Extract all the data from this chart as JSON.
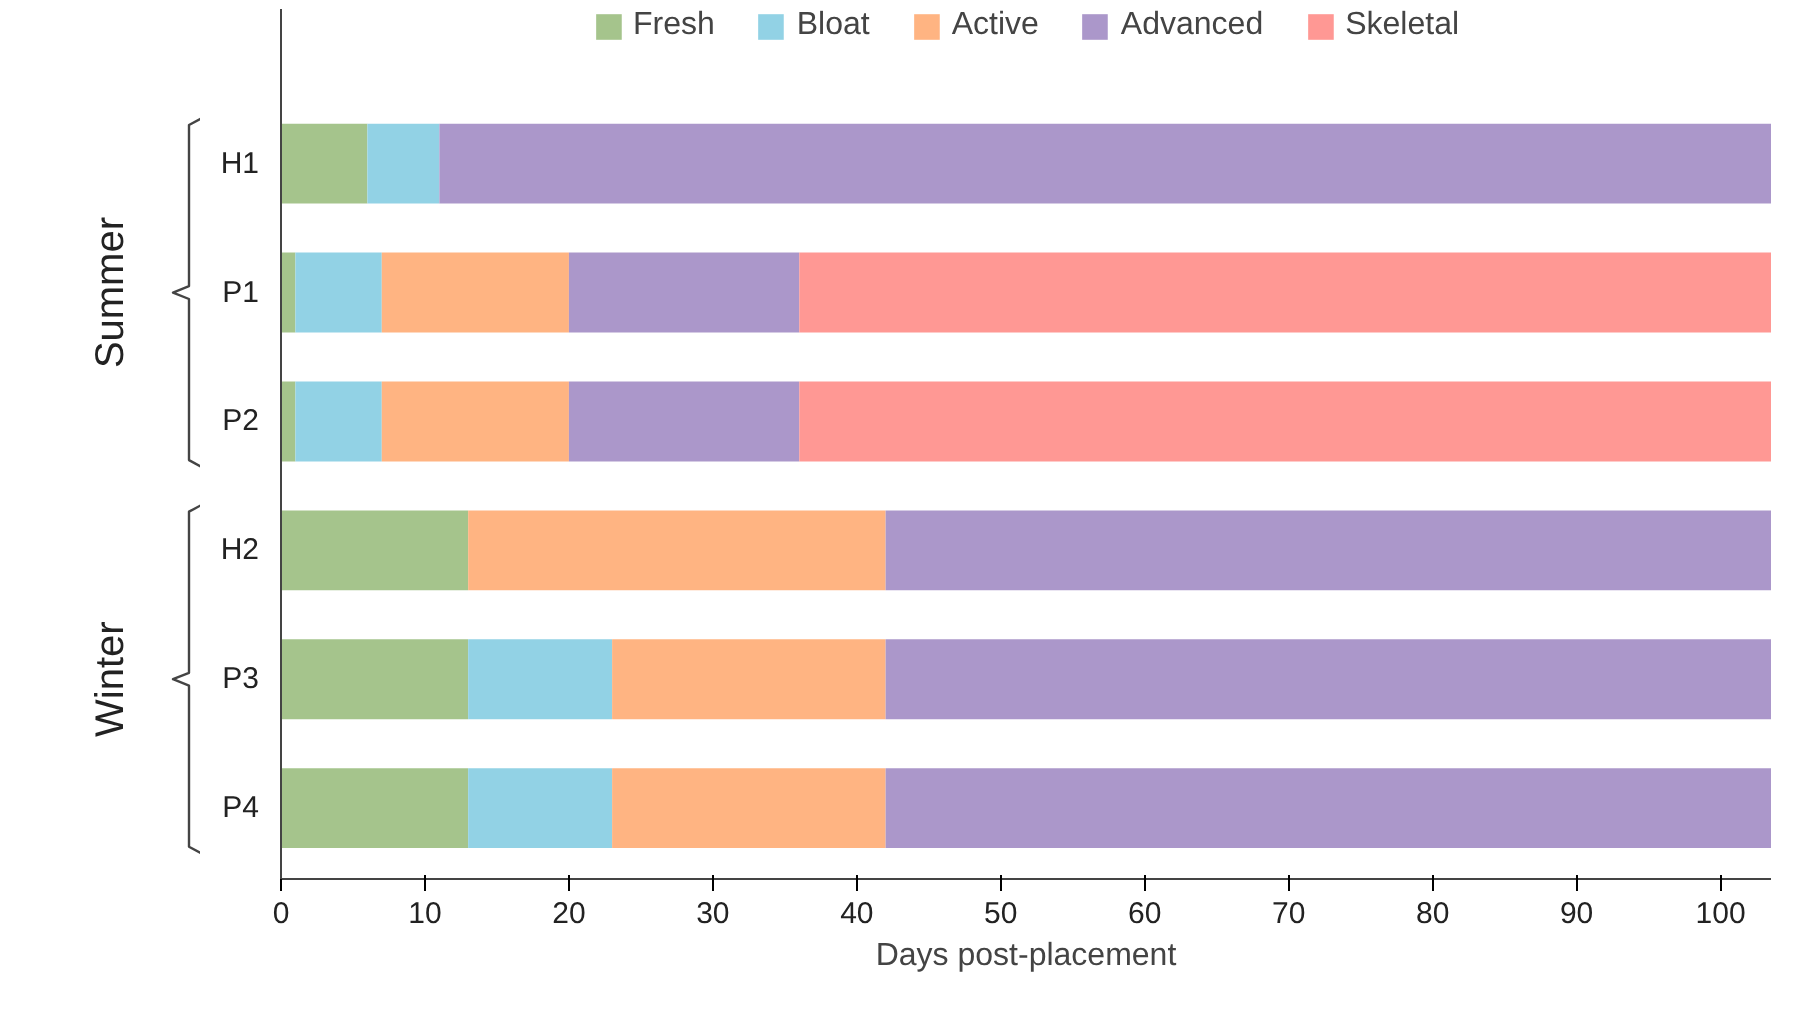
{
  "chart_data": {
    "type": "bar",
    "orientation": "horizontal",
    "stacked": true,
    "xlabel": "Days post-placement",
    "categories": [
      "H1",
      "P1",
      "P2",
      "H2",
      "P3",
      "P4"
    ],
    "series": [
      {
        "name": "Fresh",
        "color": "#a5c48c",
        "values": [
          6,
          1,
          1,
          13,
          13,
          13
        ]
      },
      {
        "name": "Bloat",
        "color": "#92d2e5",
        "values": [
          5,
          6,
          6,
          0,
          10,
          10
        ]
      },
      {
        "name": "Active",
        "color": "#ffb482",
        "values": [
          0,
          13,
          13,
          29,
          19,
          19
        ]
      },
      {
        "name": "Advanced",
        "color": "#ab97ca",
        "values": [
          92.5,
          16,
          16,
          61.5,
          61.5,
          61.5
        ]
      },
      {
        "name": "Skeletal",
        "color": "#ff9894",
        "values": [
          0,
          67.5,
          67.5,
          0,
          0,
          0
        ]
      }
    ],
    "xlim": [
      0,
      103.5
    ],
    "xticks": [
      0,
      10,
      20,
      30,
      40,
      50,
      60,
      70,
      80,
      90,
      100
    ],
    "annotations": [
      "Summer",
      "Winter"
    ],
    "grid": false,
    "legend": "top"
  }
}
